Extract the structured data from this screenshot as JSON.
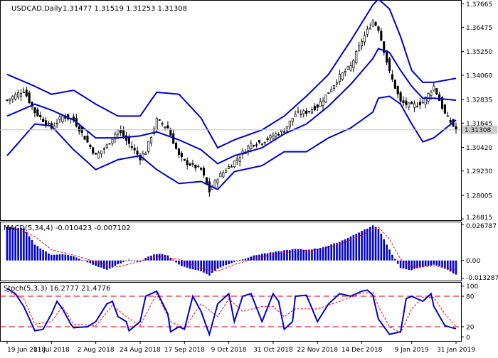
{
  "colors": {
    "background": "#ffffff",
    "frame": "#000000",
    "candle": "#000000",
    "indicator_blue": "#0000cc",
    "signal_red": "#ff0000",
    "level_red": "#cc0000",
    "price_tag_bg": "#cccccc",
    "current_line": "#c0c0c0"
  },
  "chart_data": [
    {
      "type": "candlestick",
      "symbol_label": "USDCAD,Daily",
      "ohlc_header": "1.31477 1.31519 1.31253 1.31308",
      "ylim": [
        1.2675,
        1.3785
      ],
      "y_ticks": [
        {
          "value": 1.37665,
          "label": "1.37665"
        },
        {
          "value": 1.36475,
          "label": "1.36475"
        },
        {
          "value": 1.3525,
          "label": "1.35250"
        },
        {
          "value": 1.3406,
          "label": "1.34060"
        },
        {
          "value": 1.32835,
          "label": "1.32835"
        },
        {
          "value": 1.31645,
          "label": "1.31645"
        },
        {
          "value": 1.3042,
          "label": "1.30420"
        },
        {
          "value": 1.2923,
          "label": "1.29230"
        },
        {
          "value": 1.28005,
          "label": "1.28005"
        },
        {
          "value": 1.26815,
          "label": "1.26815"
        }
      ],
      "current_price": {
        "value": 1.31308,
        "label": "1.31308"
      },
      "overlay": "Bollinger Bands (upper, middle, lower)",
      "x_range": [
        "2018-06-19",
        "2019-01-31"
      ],
      "close_anchors": [
        [
          "2018-06-19",
          1.328
        ],
        [
          "2018-06-27",
          1.333
        ],
        [
          "2018-07-03",
          1.322
        ],
        [
          "2018-07-11",
          1.314
        ],
        [
          "2018-07-17",
          1.32
        ],
        [
          "2018-07-23",
          1.318
        ],
        [
          "2018-08-02",
          1.3
        ],
        [
          "2018-08-08",
          1.305
        ],
        [
          "2018-08-14",
          1.313
        ],
        [
          "2018-08-20",
          1.306
        ],
        [
          "2018-08-24",
          1.299
        ],
        [
          "2018-08-28",
          1.302
        ],
        [
          "2018-09-03",
          1.318
        ],
        [
          "2018-09-07",
          1.314
        ],
        [
          "2018-09-13",
          1.3
        ],
        [
          "2018-09-17",
          1.297
        ],
        [
          "2018-09-25",
          1.293
        ],
        [
          "2018-09-28",
          1.282
        ],
        [
          "2018-10-03",
          1.289
        ],
        [
          "2018-10-11",
          1.297
        ],
        [
          "2018-10-19",
          1.306
        ],
        [
          "2018-10-25",
          1.307
        ],
        [
          "2018-10-31",
          1.31
        ],
        [
          "2018-11-06",
          1.313
        ],
        [
          "2018-11-12",
          1.321
        ],
        [
          "2018-11-16",
          1.322
        ],
        [
          "2018-11-22",
          1.325
        ],
        [
          "2018-11-28",
          1.332
        ],
        [
          "2018-12-04",
          1.34
        ],
        [
          "2018-12-10",
          1.345
        ],
        [
          "2018-12-14",
          1.358
        ],
        [
          "2018-12-20",
          1.368
        ],
        [
          "2018-12-24",
          1.364
        ],
        [
          "2018-12-28",
          1.342
        ],
        [
          "2019-01-03",
          1.327
        ],
        [
          "2019-01-09",
          1.325
        ],
        [
          "2019-01-15",
          1.327
        ],
        [
          "2019-01-21",
          1.335
        ],
        [
          "2019-01-25",
          1.321
        ],
        [
          "2019-01-31",
          1.313
        ]
      ],
      "bollinger_upper_anchors": [
        [
          "2018-06-19",
          1.341
        ],
        [
          "2018-07-03",
          1.335
        ],
        [
          "2018-07-11",
          1.331
        ],
        [
          "2018-07-23",
          1.333
        ],
        [
          "2018-08-02",
          1.326
        ],
        [
          "2018-08-14",
          1.32
        ],
        [
          "2018-08-24",
          1.32
        ],
        [
          "2018-09-03",
          1.332
        ],
        [
          "2018-09-13",
          1.331
        ],
        [
          "2018-09-25",
          1.319
        ],
        [
          "2018-10-03",
          1.304
        ],
        [
          "2018-10-11",
          1.308
        ],
        [
          "2018-10-25",
          1.313
        ],
        [
          "2018-11-06",
          1.32
        ],
        [
          "2018-11-16",
          1.33
        ],
        [
          "2018-11-28",
          1.341
        ],
        [
          "2018-12-10",
          1.358
        ],
        [
          "2018-12-20",
          1.376
        ],
        [
          "2018-12-24",
          1.379
        ],
        [
          "2018-12-28",
          1.374
        ],
        [
          "2019-01-03",
          1.36
        ],
        [
          "2019-01-09",
          1.343
        ],
        [
          "2019-01-15",
          1.337
        ],
        [
          "2019-01-21",
          1.337
        ],
        [
          "2019-01-31",
          1.339
        ]
      ],
      "bollinger_middle_anchors": [
        [
          "2018-06-19",
          1.32
        ],
        [
          "2018-07-03",
          1.326
        ],
        [
          "2018-07-11",
          1.323
        ],
        [
          "2018-07-23",
          1.318
        ],
        [
          "2018-08-02",
          1.309
        ],
        [
          "2018-08-14",
          1.309
        ],
        [
          "2018-08-24",
          1.31
        ],
        [
          "2018-09-03",
          1.312
        ],
        [
          "2018-09-13",
          1.308
        ],
        [
          "2018-09-25",
          1.303
        ],
        [
          "2018-10-03",
          1.296
        ],
        [
          "2018-10-11",
          1.3
        ],
        [
          "2018-10-25",
          1.304
        ],
        [
          "2018-11-06",
          1.311
        ],
        [
          "2018-11-16",
          1.316
        ],
        [
          "2018-11-28",
          1.325
        ],
        [
          "2018-12-10",
          1.336
        ],
        [
          "2018-12-20",
          1.349
        ],
        [
          "2018-12-24",
          1.354
        ],
        [
          "2018-12-28",
          1.352
        ],
        [
          "2019-01-03",
          1.343
        ],
        [
          "2019-01-09",
          1.335
        ],
        [
          "2019-01-15",
          1.329
        ],
        [
          "2019-01-21",
          1.329
        ],
        [
          "2019-01-31",
          1.328
        ]
      ],
      "bollinger_lower_anchors": [
        [
          "2018-06-19",
          1.3
        ],
        [
          "2018-07-03",
          1.316
        ],
        [
          "2018-07-11",
          1.315
        ],
        [
          "2018-07-23",
          1.303
        ],
        [
          "2018-08-02",
          1.293
        ],
        [
          "2018-08-14",
          1.298
        ],
        [
          "2018-08-24",
          1.3
        ],
        [
          "2018-09-03",
          1.293
        ],
        [
          "2018-09-13",
          1.286
        ],
        [
          "2018-09-25",
          1.287
        ],
        [
          "2018-10-03",
          1.283
        ],
        [
          "2018-10-11",
          1.292
        ],
        [
          "2018-10-25",
          1.295
        ],
        [
          "2018-11-06",
          1.302
        ],
        [
          "2018-11-16",
          1.302
        ],
        [
          "2018-11-28",
          1.309
        ],
        [
          "2018-12-10",
          1.314
        ],
        [
          "2018-12-20",
          1.322
        ],
        [
          "2018-12-24",
          1.329
        ],
        [
          "2018-12-28",
          1.33
        ],
        [
          "2019-01-03",
          1.326
        ],
        [
          "2019-01-09",
          1.316
        ],
        [
          "2019-01-15",
          1.307
        ],
        [
          "2019-01-21",
          1.309
        ],
        [
          "2019-01-31",
          1.318
        ]
      ],
      "x_ticks": [
        {
          "date": "2018-06-19",
          "label": "19 Jun 2018"
        },
        {
          "date": "2018-07-11",
          "label": "11 Jul 2018"
        },
        {
          "date": "2018-08-02",
          "label": "2 Aug 2018"
        },
        {
          "date": "2018-08-24",
          "label": "24 Aug 2018"
        },
        {
          "date": "2018-09-17",
          "label": "17 Sep 2018"
        },
        {
          "date": "2018-10-09",
          "label": "9 Oct 2018"
        },
        {
          "date": "2018-10-31",
          "label": "31 Oct 2018"
        },
        {
          "date": "2018-11-22",
          "label": "22 Nov 2018"
        },
        {
          "date": "2018-12-14",
          "label": "14 Dec 2018"
        },
        {
          "date": "2019-01-09",
          "label": "9 Jan 2019"
        },
        {
          "date": "2019-01-31",
          "label": "31 Jan 2019"
        }
      ]
    },
    {
      "type": "histogram",
      "label": "MACD(5,34,4) -0.010423 -0.007102",
      "ylim": [
        -0.015,
        0.029
      ],
      "y_ticks": [
        {
          "value": 0.026787,
          "label": "0.026787"
        },
        {
          "value": 0.0,
          "label": "0.00"
        },
        {
          "value": -0.013287,
          "label": "-0.013287"
        }
      ],
      "macd_anchors": [
        [
          "2018-06-19",
          0.025
        ],
        [
          "2018-06-27",
          0.024
        ],
        [
          "2018-07-03",
          0.012
        ],
        [
          "2018-07-11",
          0.004
        ],
        [
          "2018-07-17",
          0.005
        ],
        [
          "2018-07-23",
          0.003
        ],
        [
          "2018-08-02",
          -0.004
        ],
        [
          "2018-08-08",
          -0.007
        ],
        [
          "2018-08-14",
          -0.003
        ],
        [
          "2018-08-20",
          0.0005
        ],
        [
          "2018-08-24",
          -0.001
        ],
        [
          "2018-08-28",
          0.002
        ],
        [
          "2018-09-03",
          0.005
        ],
        [
          "2018-09-07",
          0.004
        ],
        [
          "2018-09-13",
          -0.003
        ],
        [
          "2018-09-17",
          -0.005
        ],
        [
          "2018-09-25",
          -0.008
        ],
        [
          "2018-09-28",
          -0.011
        ],
        [
          "2018-10-03",
          -0.006
        ],
        [
          "2018-10-11",
          -0.001
        ],
        [
          "2018-10-19",
          0.003
        ],
        [
          "2018-10-25",
          0.005
        ],
        [
          "2018-10-31",
          0.006
        ],
        [
          "2018-11-06",
          0.0075
        ],
        [
          "2018-11-12",
          0.0085
        ],
        [
          "2018-11-16",
          0.008
        ],
        [
          "2018-11-22",
          0.009
        ],
        [
          "2018-11-28",
          0.011
        ],
        [
          "2018-12-04",
          0.014
        ],
        [
          "2018-12-10",
          0.018
        ],
        [
          "2018-12-14",
          0.022
        ],
        [
          "2018-12-20",
          0.026
        ],
        [
          "2018-12-24",
          0.024
        ],
        [
          "2018-12-28",
          0.008
        ],
        [
          "2019-01-03",
          -0.006
        ],
        [
          "2019-01-09",
          -0.007
        ],
        [
          "2019-01-15",
          -0.005
        ],
        [
          "2019-01-21",
          -0.003
        ],
        [
          "2019-01-25",
          -0.006
        ],
        [
          "2019-01-31",
          -0.0104
        ]
      ],
      "signal_anchors": [
        [
          "2018-06-19",
          0.026
        ],
        [
          "2018-07-03",
          0.018
        ],
        [
          "2018-07-11",
          0.008
        ],
        [
          "2018-07-23",
          0.004
        ],
        [
          "2018-08-02",
          -0.001
        ],
        [
          "2018-08-14",
          -0.005
        ],
        [
          "2018-08-24",
          -0.0005
        ],
        [
          "2018-09-03",
          0.003
        ],
        [
          "2018-09-13",
          0.001
        ],
        [
          "2018-09-25",
          -0.006
        ],
        [
          "2018-10-03",
          -0.008
        ],
        [
          "2018-10-11",
          -0.003
        ],
        [
          "2018-10-25",
          0.003
        ],
        [
          "2018-11-06",
          0.006
        ],
        [
          "2018-11-22",
          0.008
        ],
        [
          "2018-12-04",
          0.012
        ],
        [
          "2018-12-14",
          0.019
        ],
        [
          "2018-12-24",
          0.025
        ],
        [
          "2018-12-28",
          0.016
        ],
        [
          "2019-01-03",
          0.001
        ],
        [
          "2019-01-09",
          -0.005
        ],
        [
          "2019-01-21",
          -0.004
        ],
        [
          "2019-01-31",
          -0.0071
        ]
      ]
    },
    {
      "type": "line",
      "label": "Stoch(5,3,3) 16.2777 21.4776",
      "ylim": [
        -8,
        108
      ],
      "y_ticks": [
        {
          "value": 100,
          "label": "100"
        },
        {
          "value": 80,
          "label": "80"
        },
        {
          "value": 20,
          "label": "20"
        },
        {
          "value": 0,
          "label": "0"
        }
      ],
      "levels": [
        80,
        20
      ],
      "k_anchors": [
        [
          "2018-06-19",
          95
        ],
        [
          "2018-06-22",
          85
        ],
        [
          "2018-06-27",
          60
        ],
        [
          "2018-07-03",
          12
        ],
        [
          "2018-07-06",
          15
        ],
        [
          "2018-07-11",
          45
        ],
        [
          "2018-07-13",
          70
        ],
        [
          "2018-07-17",
          55
        ],
        [
          "2018-07-20",
          25
        ],
        [
          "2018-07-23",
          18
        ],
        [
          "2018-07-30",
          20
        ],
        [
          "2018-08-02",
          30
        ],
        [
          "2018-08-08",
          65
        ],
        [
          "2018-08-10",
          70
        ],
        [
          "2018-08-14",
          40
        ],
        [
          "2018-08-17",
          30
        ],
        [
          "2018-08-20",
          12
        ],
        [
          "2018-08-24",
          30
        ],
        [
          "2018-08-28",
          80
        ],
        [
          "2018-09-03",
          90
        ],
        [
          "2018-09-07",
          45
        ],
        [
          "2018-09-10",
          10
        ],
        [
          "2018-09-13",
          20
        ],
        [
          "2018-09-17",
          15
        ],
        [
          "2018-09-20",
          80
        ],
        [
          "2018-09-25",
          50
        ],
        [
          "2018-09-28",
          5
        ],
        [
          "2018-10-03",
          65
        ],
        [
          "2018-10-09",
          85
        ],
        [
          "2018-10-11",
          30
        ],
        [
          "2018-10-16",
          80
        ],
        [
          "2018-10-19",
          85
        ],
        [
          "2018-10-25",
          30
        ],
        [
          "2018-10-31",
          85
        ],
        [
          "2018-11-02",
          70
        ],
        [
          "2018-11-06",
          15
        ],
        [
          "2018-11-09",
          30
        ],
        [
          "2018-11-12",
          80
        ],
        [
          "2018-11-16",
          82
        ],
        [
          "2018-11-22",
          30
        ],
        [
          "2018-11-28",
          65
        ],
        [
          "2018-12-04",
          85
        ],
        [
          "2018-12-10",
          80
        ],
        [
          "2018-12-14",
          90
        ],
        [
          "2018-12-18",
          92
        ],
        [
          "2018-12-20",
          82
        ],
        [
          "2018-12-24",
          35
        ],
        [
          "2018-12-28",
          5
        ],
        [
          "2019-01-03",
          10
        ],
        [
          "2019-01-07",
          75
        ],
        [
          "2019-01-09",
          80
        ],
        [
          "2019-01-15",
          70
        ],
        [
          "2019-01-18",
          85
        ],
        [
          "2019-01-21",
          60
        ],
        [
          "2019-01-25",
          22
        ],
        [
          "2019-01-31",
          16
        ]
      ],
      "d_anchors": [
        [
          "2018-06-19",
          90
        ],
        [
          "2018-06-27",
          75
        ],
        [
          "2018-07-03",
          25
        ],
        [
          "2018-07-11",
          30
        ],
        [
          "2018-07-17",
          60
        ],
        [
          "2018-07-23",
          25
        ],
        [
          "2018-08-02",
          22
        ],
        [
          "2018-08-10",
          62
        ],
        [
          "2018-08-17",
          40
        ],
        [
          "2018-08-24",
          22
        ],
        [
          "2018-09-03",
          85
        ],
        [
          "2018-09-10",
          30
        ],
        [
          "2018-09-17",
          18
        ],
        [
          "2018-09-25",
          65
        ],
        [
          "2018-10-03",
          40
        ],
        [
          "2018-10-09",
          75
        ],
        [
          "2018-10-16",
          50
        ],
        [
          "2018-10-25",
          60
        ],
        [
          "2018-10-31",
          60
        ],
        [
          "2018-11-06",
          40
        ],
        [
          "2018-11-12",
          55
        ],
        [
          "2018-11-22",
          55
        ],
        [
          "2018-12-04",
          70
        ],
        [
          "2018-12-14",
          86
        ],
        [
          "2018-12-20",
          88
        ],
        [
          "2018-12-24",
          60
        ],
        [
          "2018-12-28",
          20
        ],
        [
          "2019-01-03",
          8
        ],
        [
          "2019-01-09",
          55
        ],
        [
          "2019-01-15",
          78
        ],
        [
          "2019-01-21",
          78
        ],
        [
          "2019-01-25",
          45
        ],
        [
          "2019-01-31",
          21
        ]
      ]
    }
  ]
}
